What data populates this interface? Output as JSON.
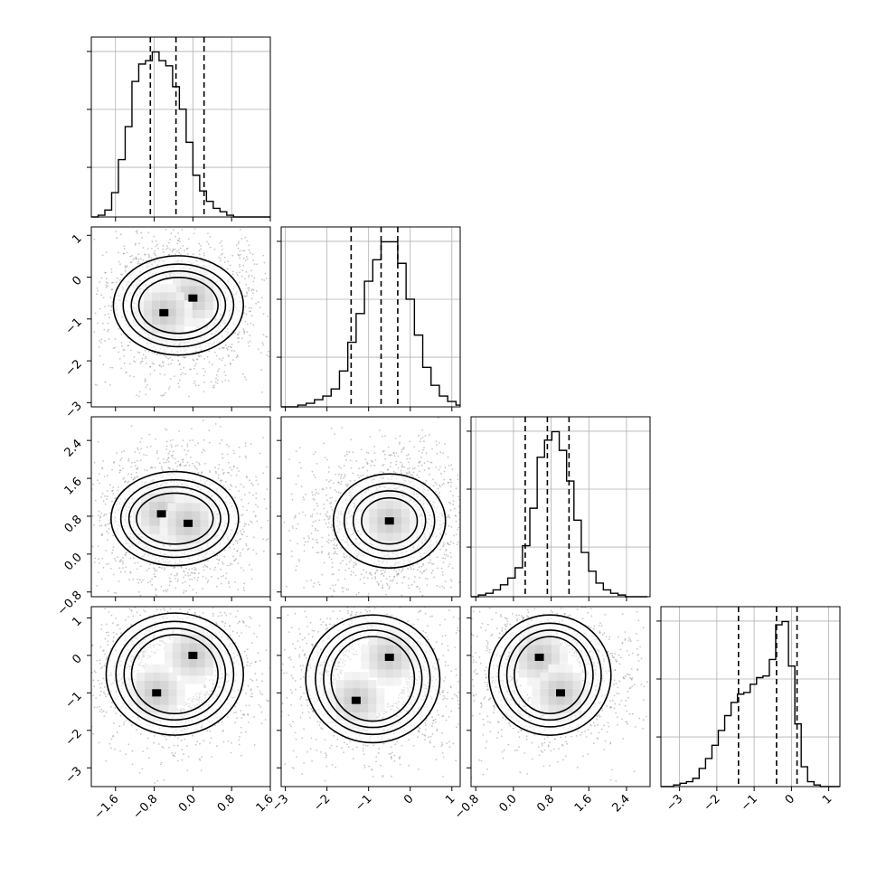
{
  "chart_data": {
    "type": "corner",
    "parameters": 4,
    "grid": true,
    "quantiles": [
      0.16,
      0.5,
      0.84
    ],
    "ranges": [
      [
        -2.1,
        1.6
      ],
      [
        -3.1,
        1.2
      ],
      [
        -0.9,
        2.9
      ],
      [
        -3.5,
        1.3
      ]
    ],
    "ticks": [
      [
        -1.6,
        -0.8,
        0.0,
        0.8,
        1.6
      ],
      [
        -3,
        -2,
        -1,
        0,
        1
      ],
      [
        -0.8,
        0.0,
        0.8,
        1.6,
        2.4
      ],
      [
        -3,
        -2,
        -1,
        0,
        1
      ]
    ],
    "tick_labels": [
      [
        "−1.6",
        "−0.8",
        "0.0",
        "0.8",
        "1.6"
      ],
      [
        "−3",
        "−2",
        "−1",
        "0",
        "1"
      ],
      [
        "−0.8",
        "0.0",
        "0.8",
        "1.6",
        "2.4"
      ],
      [
        "−3",
        "−2",
        "−1",
        "0",
        "1"
      ]
    ],
    "marginals": [
      {
        "param": 0,
        "quantile_values": [
          -0.88,
          -0.35,
          0.23
        ],
        "bin_start": -2.1,
        "bin_width": 0.14,
        "counts": [
          0,
          1,
          4,
          14,
          33,
          52,
          78,
          88,
          90,
          95,
          90,
          87,
          75,
          62,
          43,
          24,
          15,
          9,
          5,
          3,
          1,
          0,
          0,
          0,
          0,
          0,
          0
        ]
      },
      {
        "param": 1,
        "quantile_values": [
          -1.42,
          -0.7,
          -0.3
        ],
        "bin_start": -3.1,
        "bin_width": 0.2,
        "counts": [
          0,
          0,
          1,
          2,
          4,
          6,
          10,
          20,
          36,
          52,
          70,
          82,
          92,
          92,
          80,
          60,
          40,
          22,
          12,
          6,
          3,
          1
        ]
      },
      {
        "param": 2,
        "quantile_values": [
          0.25,
          0.72,
          1.18
        ],
        "bin_start": -0.9,
        "bin_width": 0.156,
        "counts": [
          0,
          1,
          2,
          4,
          7,
          11,
          17,
          30,
          52,
          82,
          92,
          97,
          86,
          68,
          45,
          26,
          15,
          8,
          4,
          2,
          1,
          0,
          0,
          0
        ]
      },
      {
        "param": 3,
        "quantile_values": [
          -1.42,
          -0.4,
          0.15
        ],
        "bin_start": -3.5,
        "bin_width": 0.171,
        "counts": [
          0,
          0,
          1,
          2,
          3,
          5,
          11,
          17,
          25,
          34,
          43,
          51,
          56,
          57,
          62,
          66,
          67,
          77,
          98,
          100,
          73,
          38,
          12,
          3,
          1,
          0,
          0,
          0
        ]
      }
    ],
    "joint_panels": [
      {
        "x_param": 0,
        "y_param": 1,
        "modes": [
          [
            0.0,
            -0.5
          ],
          [
            -0.6,
            -0.85
          ]
        ]
      },
      {
        "x_param": 0,
        "y_param": 2,
        "modes": [
          [
            -0.65,
            0.85
          ],
          [
            -0.1,
            0.65
          ]
        ]
      },
      {
        "x_param": 1,
        "y_param": 2,
        "modes": [
          [
            -0.5,
            0.7
          ]
        ]
      },
      {
        "x_param": 0,
        "y_param": 3,
        "modes": [
          [
            0.0,
            0.0
          ],
          [
            -0.75,
            -1.0
          ]
        ]
      },
      {
        "x_param": 1,
        "y_param": 3,
        "modes": [
          [
            -0.5,
            -0.05
          ],
          [
            -1.3,
            -1.2
          ]
        ]
      },
      {
        "x_param": 2,
        "y_param": 3,
        "modes": [
          [
            0.55,
            -0.05
          ],
          [
            1.0,
            -1.0
          ]
        ]
      }
    ]
  }
}
